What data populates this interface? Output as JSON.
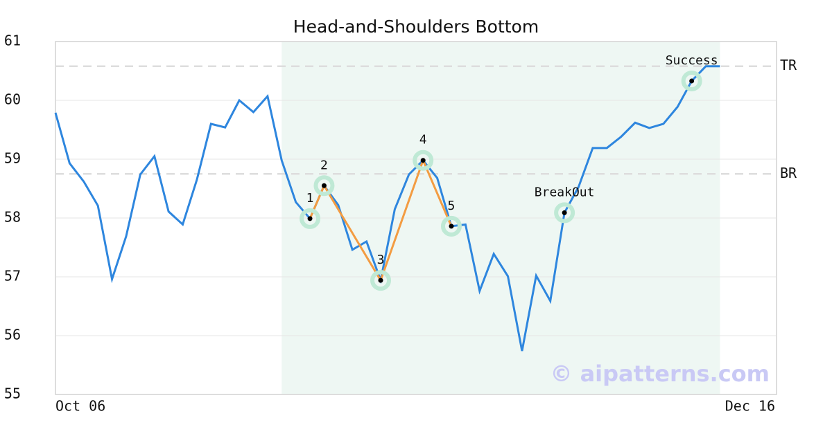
{
  "chart_data": {
    "type": "line",
    "title": "Head-and-Shoulders Bottom",
    "watermark": "© aipatterns.com",
    "x": [
      0,
      1,
      2,
      3,
      4,
      5,
      6,
      7,
      8,
      9,
      10,
      11,
      12,
      13,
      14,
      15,
      16,
      17,
      18,
      19,
      20,
      21,
      22,
      23,
      24,
      25,
      26,
      27,
      28,
      29,
      30,
      31,
      32,
      33,
      34,
      35,
      36,
      37,
      38,
      39,
      40,
      41,
      42,
      43,
      44,
      45,
      46,
      47
    ],
    "series": [
      {
        "color": "#2e86de",
        "values": [
          59.79,
          58.93,
          58.62,
          58.21,
          56.96,
          57.69,
          58.74,
          59.05,
          58.11,
          57.89,
          58.65,
          59.6,
          59.54,
          60.0,
          59.8,
          60.07,
          58.98,
          58.27,
          57.99,
          58.55,
          58.22,
          57.46,
          57.6,
          56.94,
          58.15,
          58.74,
          58.98,
          58.68,
          57.86,
          57.89,
          56.76,
          57.39,
          57.01,
          55.74,
          57.02,
          56.59,
          58.09,
          58.53,
          59.19,
          59.19,
          59.38,
          59.62,
          59.53,
          59.6,
          59.89,
          60.33,
          60.58,
          60.58
        ]
      }
    ],
    "pattern_points": [
      {
        "label": "1",
        "x": 18,
        "y": 57.99
      },
      {
        "label": "2",
        "x": 19,
        "y": 58.55
      },
      {
        "label": "3",
        "x": 23,
        "y": 56.94
      },
      {
        "label": "4",
        "x": 26,
        "y": 58.98
      },
      {
        "label": "5",
        "x": 28,
        "y": 57.86
      },
      {
        "label": "BreakOut",
        "x": 36,
        "y": 58.09
      },
      {
        "label": "Success",
        "x": 45,
        "y": 60.33
      }
    ],
    "pattern_line_color": "#f39c42",
    "pattern_line_points": [
      0,
      1,
      2,
      3,
      4
    ],
    "levels": [
      {
        "label": "TR",
        "value": 60.58
      },
      {
        "label": "BR",
        "value": 58.75
      }
    ],
    "shaded_region": [
      16,
      47
    ],
    "xlim": [
      0,
      51
    ],
    "xticks": [
      {
        "value": 0,
        "label": "Oct 06"
      },
      {
        "value": 51,
        "label": "Dec 16"
      }
    ],
    "ylim": [
      55,
      61
    ],
    "yticks": [
      55,
      56,
      57,
      58,
      59,
      60,
      61
    ],
    "grid": true
  }
}
